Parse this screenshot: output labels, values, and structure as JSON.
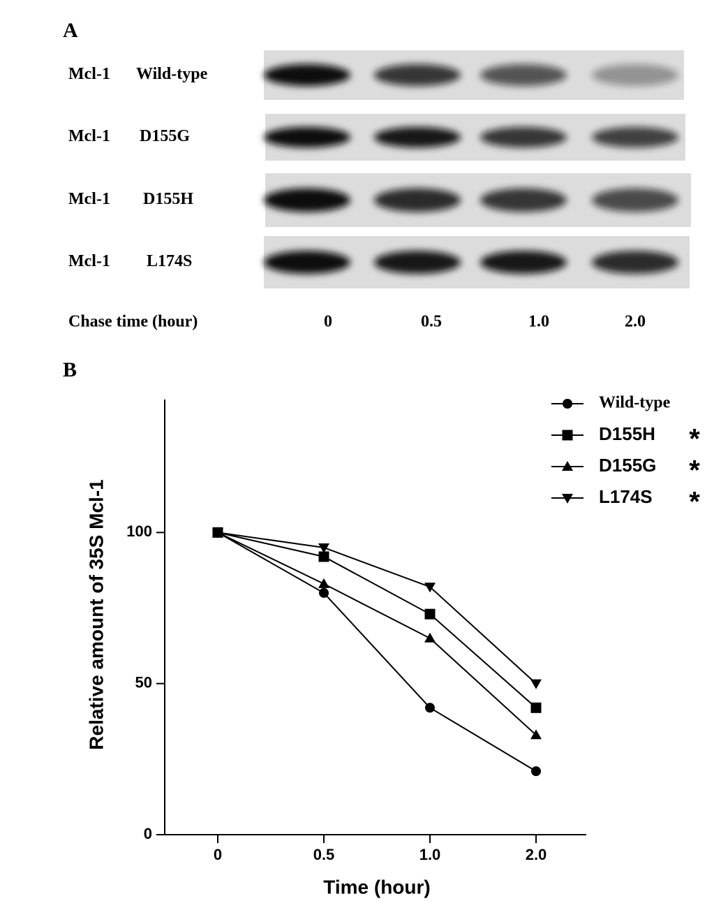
{
  "blot": {
    "panel_label": "A",
    "rows": [
      {
        "protein": "Mcl-1",
        "variant": "Wild-type"
      },
      {
        "protein": "Mcl-1",
        "variant": "D155G"
      },
      {
        "protein": "Mcl-1",
        "variant": "D155H"
      },
      {
        "protein": "Mcl-1",
        "variant": "L174S"
      }
    ],
    "time_label": "Chase time (hour)",
    "times": [
      "0",
      "0.5",
      "1.0",
      "2.0"
    ]
  },
  "chart_data": {
    "type": "line",
    "panel_label": "B",
    "x_label": "Time (hour)",
    "y_label": "Relative amount of 35S Mcl-1",
    "categories": [
      "0",
      "0.5",
      "1.0",
      "2.0"
    ],
    "ylim": [
      0,
      144
    ],
    "yticks": [
      0,
      50,
      100
    ],
    "grid": false,
    "legend": "upper right",
    "series": [
      {
        "name": "Wild-type",
        "color": "#000000",
        "marker": "circle",
        "values": [
          100,
          80,
          42,
          21
        ]
      },
      {
        "name": "D155H",
        "color": "#000000",
        "marker": "square",
        "significance": "*",
        "values": [
          100,
          92,
          73,
          42
        ]
      },
      {
        "name": "D155G",
        "color": "#000000",
        "marker": "triangle-up",
        "significance": "*",
        "values": [
          100,
          83,
          65,
          33
        ]
      },
      {
        "name": "L174S",
        "color": "#000000",
        "marker": "triangle-down",
        "significance": "*",
        "values": [
          100,
          95,
          82,
          50
        ]
      }
    ]
  }
}
